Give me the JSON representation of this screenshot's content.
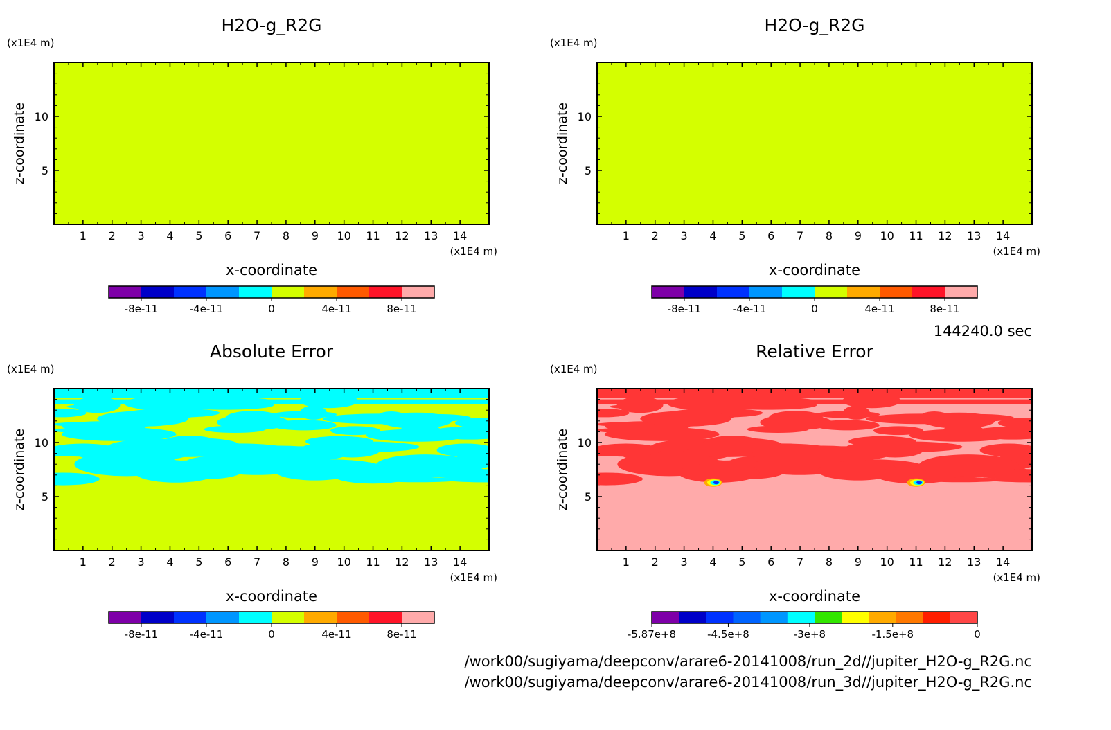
{
  "footer": {
    "time": "144240.0 sec",
    "path_2d": "/work00/sugiyama/deepconv/arare6-20141008/run_2d//jupiter_H2O-g_R2G.nc",
    "path_3d": "/work00/sugiyama/deepconv/arare6-20141008/run_3d//jupiter_H2O-g_R2G.nc"
  },
  "colors": {
    "background": "#d4ff00",
    "absolute_pattern": "#00ffff",
    "relative_base": "#ffaaaa",
    "relative_pattern": "#ff3636",
    "frame": "#000000"
  },
  "chart_data": [
    {
      "type": "heatmap",
      "title": "H2O-g_R2G",
      "xlabel": "x-coordinate",
      "ylabel": "z-coordinate",
      "x_unit": "(x1E4 m)",
      "y_unit": "(x1E4 m)",
      "xlim": [
        0,
        15
      ],
      "ylim": [
        0,
        15
      ],
      "x_ticks": [
        "1",
        "2",
        "3",
        "4",
        "5",
        "6",
        "7",
        "8",
        "9",
        "10",
        "11",
        "12",
        "13",
        "14"
      ],
      "y_ticks": [
        "5",
        "10"
      ],
      "field": "uniform",
      "value": 0,
      "colorbar": {
        "colors": [
          "#7e00a8",
          "#0000c8",
          "#0032ff",
          "#0096ff",
          "#00ffff",
          "#d4ff00",
          "#ffaa00",
          "#ff5a00",
          "#ff1428",
          "#ffaaaa"
        ],
        "labels": [
          "-8e-11",
          "-4e-11",
          "0",
          "4e-11",
          "8e-11"
        ]
      }
    },
    {
      "type": "heatmap",
      "title": "H2O-g_R2G",
      "xlabel": "x-coordinate",
      "ylabel": "z-coordinate",
      "x_unit": "(x1E4 m)",
      "y_unit": "(x1E4 m)",
      "xlim": [
        0,
        15
      ],
      "ylim": [
        0,
        15
      ],
      "x_ticks": [
        "1",
        "2",
        "3",
        "4",
        "5",
        "6",
        "7",
        "8",
        "9",
        "10",
        "11",
        "12",
        "13",
        "14"
      ],
      "y_ticks": [
        "5",
        "10"
      ],
      "field": "uniform",
      "value": 0,
      "colorbar": {
        "colors": [
          "#7e00a8",
          "#0000c8",
          "#0032ff",
          "#0096ff",
          "#00ffff",
          "#d4ff00",
          "#ffaa00",
          "#ff5a00",
          "#ff1428",
          "#ffaaaa"
        ],
        "labels": [
          "-8e-11",
          "-4e-11",
          "0",
          "4e-11",
          "8e-11"
        ]
      }
    },
    {
      "type": "heatmap",
      "title": "Absolute Error",
      "xlabel": "x-coordinate",
      "ylabel": "z-coordinate",
      "x_unit": "(x1E4 m)",
      "y_unit": "(x1E4 m)",
      "xlim": [
        0,
        15
      ],
      "ylim": [
        0,
        15
      ],
      "x_ticks": [
        "1",
        "2",
        "3",
        "4",
        "5",
        "6",
        "7",
        "8",
        "9",
        "10",
        "11",
        "12",
        "13",
        "14"
      ],
      "y_ticks": [
        "5",
        "10"
      ],
      "field": "layered_pattern",
      "colorbar": {
        "colors": [
          "#7e00a8",
          "#0000c8",
          "#0032ff",
          "#0096ff",
          "#00ffff",
          "#d4ff00",
          "#ffaa00",
          "#ff5a00",
          "#ff1428",
          "#ffaaaa"
        ],
        "labels": [
          "-8e-11",
          "-4e-11",
          "0",
          "4e-11",
          "8e-11"
        ]
      }
    },
    {
      "type": "heatmap",
      "title": "Relative Error",
      "xlabel": "x-coordinate",
      "ylabel": "z-coordinate",
      "x_unit": "(x1E4 m)",
      "y_unit": "(x1E4 m)",
      "xlim": [
        0,
        15
      ],
      "ylim": [
        0,
        15
      ],
      "x_ticks": [
        "1",
        "2",
        "3",
        "4",
        "5",
        "6",
        "7",
        "8",
        "9",
        "10",
        "11",
        "12",
        "13",
        "14"
      ],
      "y_ticks": [
        "5",
        "10"
      ],
      "field": "layered_pattern",
      "hotspots": [
        [
          4,
          6.3
        ],
        [
          11,
          6.3
        ]
      ],
      "colorbar": {
        "colors": [
          "#7e00a8",
          "#0000c8",
          "#0032ff",
          "#0064ff",
          "#0096ff",
          "#00ffff",
          "#32e600",
          "#ffff00",
          "#ffaa00",
          "#ff7800",
          "#ff1e00",
          "#ff4646"
        ],
        "labels": [
          "-5.87e+8",
          "-4.5e+8",
          "-3e+8",
          "-1.5e+8",
          "0"
        ]
      }
    }
  ]
}
